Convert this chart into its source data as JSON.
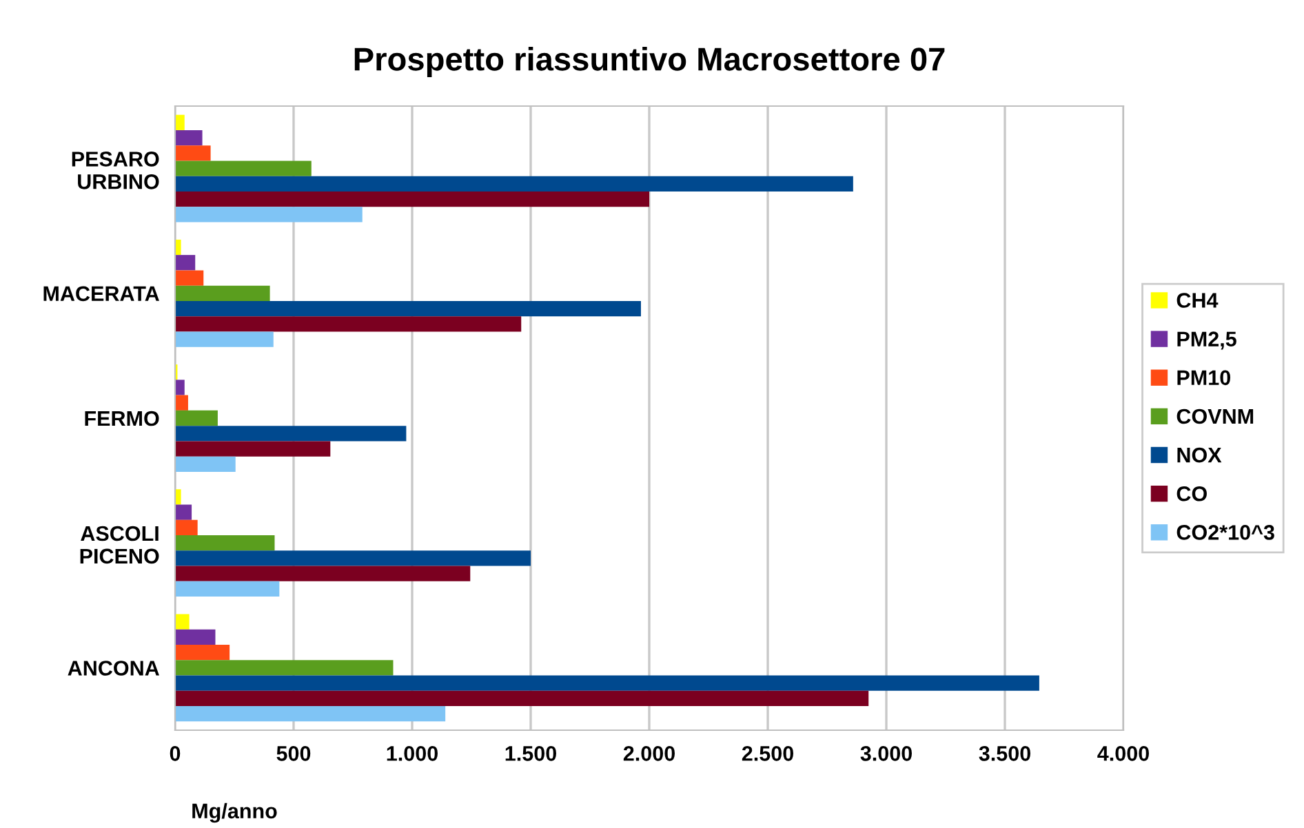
{
  "chart_data": {
    "type": "bar",
    "orientation": "horizontal",
    "title": "Prospetto riassuntivo Macrosettore 07",
    "xlabel": "Mg/anno",
    "categories": [
      "PESARO\nURBINO",
      "MACERATA",
      "FERMO",
      "ASCOLI\nPICENO",
      "ANCONA"
    ],
    "series": [
      {
        "name": "CH4",
        "color": "#ffff00",
        "values": [
          40,
          25,
          10,
          25,
          60
        ]
      },
      {
        "name": "PM2,5",
        "color": "#7030a0",
        "values": [
          115,
          85,
          40,
          70,
          170
        ]
      },
      {
        "name": "PM10",
        "color": "#ff4b14",
        "values": [
          150,
          120,
          55,
          95,
          230
        ]
      },
      {
        "name": "COVNM",
        "color": "#5a9e1e",
        "values": [
          575,
          400,
          180,
          420,
          920
        ]
      },
      {
        "name": "NOX",
        "color": "#00498f",
        "values": [
          2860,
          1965,
          975,
          1500,
          3645
        ]
      },
      {
        "name": "CO",
        "color": "#7b0020",
        "values": [
          2000,
          1460,
          655,
          1245,
          2925
        ]
      },
      {
        "name": "CO2*10^3",
        "color": "#7fc4f5",
        "values": [
          790,
          415,
          255,
          440,
          1140
        ]
      }
    ],
    "xlim": [
      0,
      4000
    ],
    "xticks": [
      0,
      {
        "value": 500,
        "label": "500"
      },
      {
        "value": 1000,
        "label": "1.000"
      },
      {
        "value": 1500,
        "label": "1.500"
      },
      {
        "value": 2000,
        "label": "2.000"
      },
      {
        "value": 2500,
        "label": "2.500"
      },
      {
        "value": 3000,
        "label": "3.000"
      },
      {
        "value": 3500,
        "label": "3.500"
      },
      {
        "value": 4000,
        "label": "4.000"
      }
    ],
    "grid": "x",
    "legend": "right"
  }
}
